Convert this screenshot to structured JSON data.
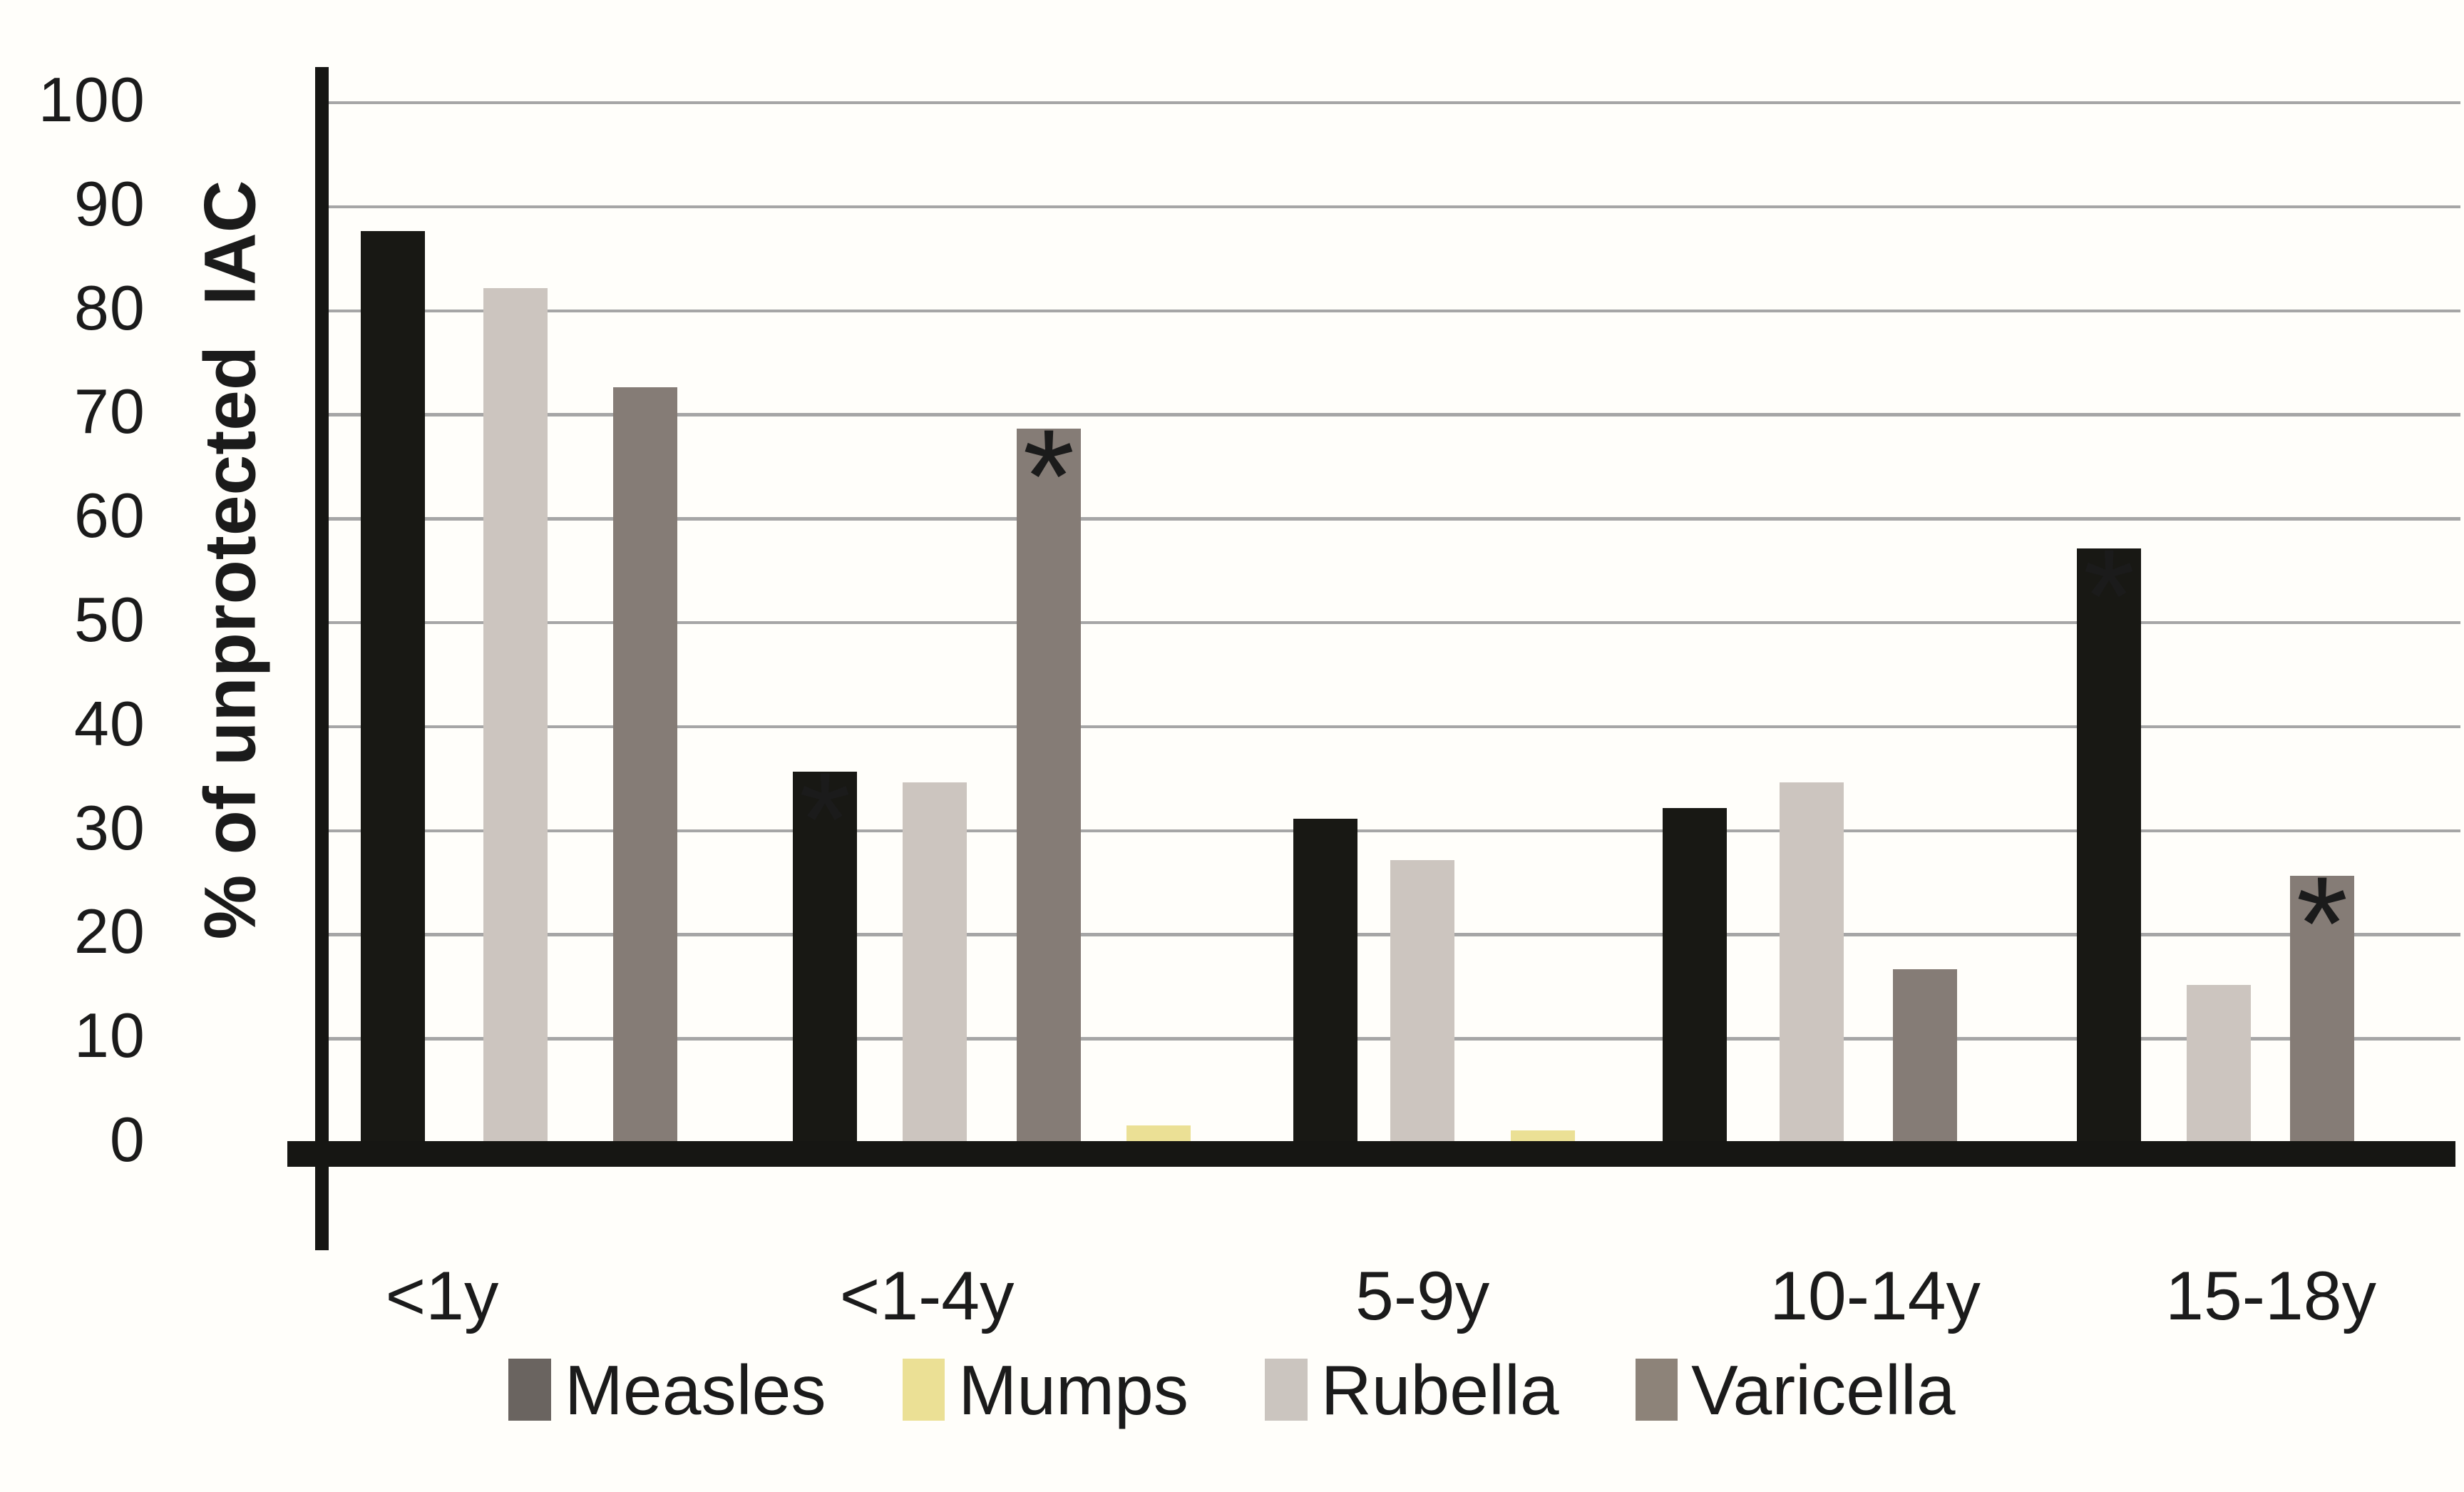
{
  "figure": {
    "background_color": "#fffefa",
    "text_color": "#1b1b1b",
    "gridline_color": "#a6a6a6",
    "axis_color": "#161613",
    "y_axis": {
      "title": "% of unprotected  IAC",
      "tick_labels": [
        "100",
        "90",
        "80",
        "70",
        "60",
        "50",
        "40",
        "30",
        "20",
        "10",
        "0"
      ]
    },
    "x_axis": {
      "categories": [
        "<1y",
        "<1-4y",
        "5-9y",
        "10-14y",
        "15-18y"
      ]
    },
    "legend": {
      "items": [
        {
          "label": "Measles",
          "swatch_color": "#6a6460"
        },
        {
          "label": "Mumps",
          "swatch_color": "#ebe095"
        },
        {
          "label": "Rubella",
          "swatch_color": "#cbc5bf"
        },
        {
          "label": "Varicella",
          "swatch_color": "#8d8379"
        }
      ]
    },
    "significance_marker": "*"
  },
  "chart_data": {
    "type": "bar",
    "title": "",
    "xlabel": "",
    "ylabel": "% of unprotected IAC",
    "ylim": [
      0,
      100
    ],
    "grid": true,
    "gridline_step": 10,
    "legend_position": "bottom",
    "categories": [
      "<1y",
      "<1-4y",
      "5-9y",
      "10-14y",
      "15-18y"
    ],
    "series": [
      {
        "name": "Measles",
        "bar_color": "#181814",
        "values": [
          87.5,
          35.5,
          31,
          32,
          57
        ],
        "significant": [
          false,
          true,
          false,
          false,
          true
        ]
      },
      {
        "name": "Mumps",
        "bar_color": "#ebe095",
        "values": [
          0,
          1.5,
          1,
          0,
          0
        ],
        "significant": [
          false,
          false,
          false,
          false,
          false
        ]
      },
      {
        "name": "Rubella",
        "bar_color": "#ccc5bf",
        "values": [
          82,
          34.5,
          27,
          34.5,
          15
        ],
        "significant": [
          false,
          false,
          false,
          false,
          false
        ]
      },
      {
        "name": "Varicella",
        "bar_color": "#857c76",
        "values": [
          72.5,
          68.5,
          0,
          16.5,
          25.5
        ],
        "significant": [
          false,
          true,
          false,
          false,
          true
        ]
      }
    ],
    "bar_display_order": [
      [
        "Measles",
        "Rubella",
        "Varicella"
      ],
      [
        "Measles",
        "Rubella",
        "Varicella",
        "Mumps"
      ],
      [
        "Measles",
        "Rubella",
        "Mumps"
      ],
      [
        "Measles",
        "Rubella",
        "Varicella"
      ],
      [
        "Measles",
        "Rubella",
        "Varicella"
      ]
    ]
  }
}
